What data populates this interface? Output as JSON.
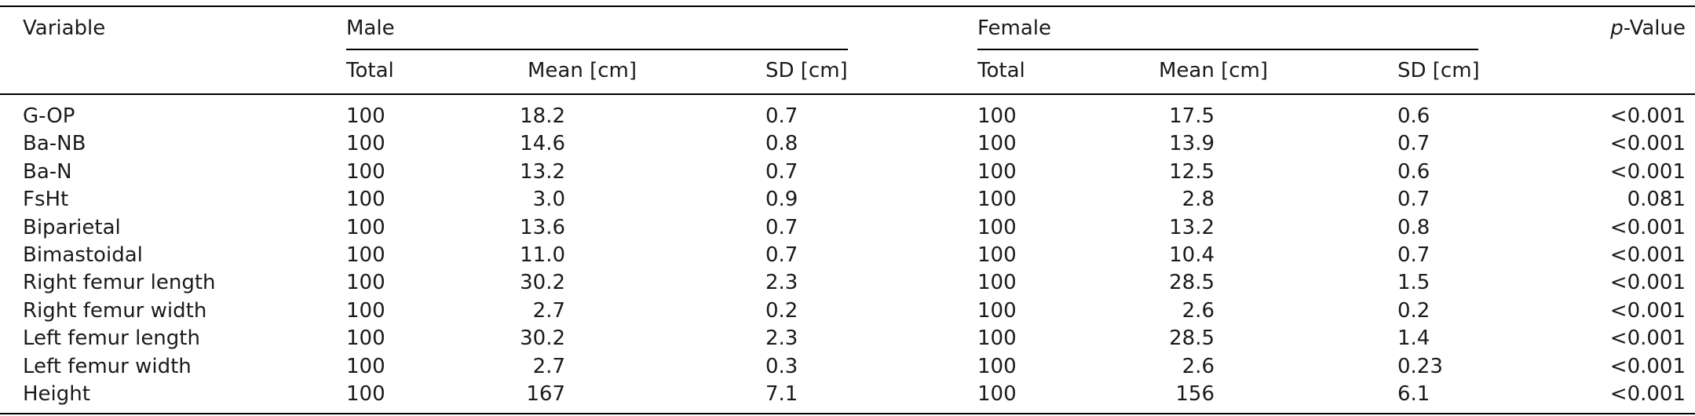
{
  "headers": {
    "variable": "Variable",
    "male": "Male",
    "female": "Female",
    "pvalue_italic": "p",
    "pvalue_rest": "-Value",
    "sub": [
      "Total",
      "Mean [cm]",
      "SD [cm]",
      "Total",
      "Mean [cm]",
      "SD [cm]"
    ]
  },
  "rows": [
    {
      "variable": "G-OP",
      "m_total": "100",
      "m_mean": "18.2",
      "m_sd": "0.7",
      "f_total": "100",
      "f_mean": "17.5",
      "f_sd": "0.6",
      "p": "<0.001"
    },
    {
      "variable": "Ba-NB",
      "m_total": "100",
      "m_mean": "14.6",
      "m_sd": "0.8",
      "f_total": "100",
      "f_mean": "13.9",
      "f_sd": "0.7",
      "p": "<0.001"
    },
    {
      "variable": "Ba-N",
      "m_total": "100",
      "m_mean": "13.2",
      "m_sd": "0.7",
      "f_total": "100",
      "f_mean": "12.5",
      "f_sd": "0.6",
      "p": "<0.001"
    },
    {
      "variable": "FsHt",
      "m_total": "100",
      "m_mean": "3.0",
      "m_sd": "0.9",
      "f_total": "100",
      "f_mean": "2.8",
      "f_sd": "0.7",
      "p": "0.081"
    },
    {
      "variable": "Biparietal",
      "m_total": "100",
      "m_mean": "13.6",
      "m_sd": "0.7",
      "f_total": "100",
      "f_mean": "13.2",
      "f_sd": "0.8",
      "p": "<0.001"
    },
    {
      "variable": "Bimastoidal",
      "m_total": "100",
      "m_mean": "11.0",
      "m_sd": "0.7",
      "f_total": "100",
      "f_mean": "10.4",
      "f_sd": "0.7",
      "p": "<0.001"
    },
    {
      "variable": "Right femur length",
      "m_total": "100",
      "m_mean": "30.2",
      "m_sd": "2.3",
      "f_total": "100",
      "f_mean": "28.5",
      "f_sd": "1.5",
      "p": "<0.001"
    },
    {
      "variable": "Right femur width",
      "m_total": "100",
      "m_mean": "2.7",
      "m_sd": "0.2",
      "f_total": "100",
      "f_mean": "2.6",
      "f_sd": "0.2",
      "p": "<0.001"
    },
    {
      "variable": "Left femur length",
      "m_total": "100",
      "m_mean": "30.2",
      "m_sd": "2.3",
      "f_total": "100",
      "f_mean": "28.5",
      "f_sd": "1.4",
      "p": "<0.001"
    },
    {
      "variable": "Left femur width",
      "m_total": "100",
      "m_mean": "2.7",
      "m_sd": "0.3",
      "f_total": "100",
      "f_mean": "2.6",
      "f_sd": "0.23",
      "p": "<0.001"
    },
    {
      "variable": "Height",
      "m_total": "100",
      "m_mean": "167",
      "m_sd": "7.1",
      "f_total": "100",
      "f_mean": "156",
      "f_sd": "6.1",
      "p": "<0.001"
    }
  ]
}
